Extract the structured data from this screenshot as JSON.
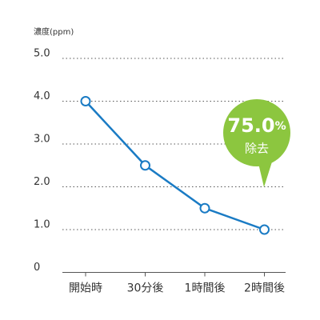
{
  "chart_data": {
    "type": "line",
    "y_label": "濃度(ppm)",
    "categories": [
      "開始時",
      "30分後",
      "1時間後",
      "2時間後"
    ],
    "series": [
      {
        "color": "#1a7bc4",
        "values": [
          4,
          2.5,
          1.5,
          1
        ]
      }
    ],
    "ylim": [
      0,
      5
    ],
    "yticks": [
      0,
      {
        "value": 1,
        "label": "1.0"
      },
      {
        "value": 2,
        "label": "2.0"
      },
      {
        "value": 3,
        "label": "3.0"
      },
      {
        "value": 4,
        "label": "4.0"
      },
      {
        "value": 5,
        "label": "5.0"
      }
    ],
    "grid": true,
    "annotation": {
      "value": "75.0",
      "unit": "%",
      "label": "除去",
      "color": "#8cc63f"
    }
  }
}
